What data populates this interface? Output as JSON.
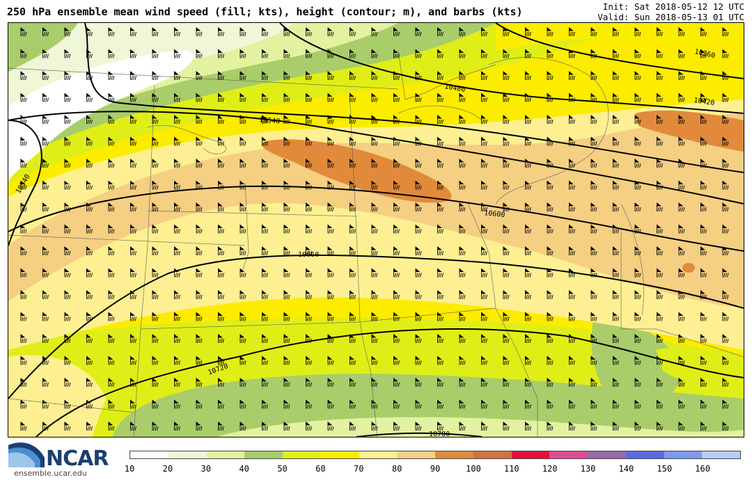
{
  "title": "250 hPa ensemble mean wind speed (fill; kts), height (contour; m), and barbs (kts)",
  "init_label": "Init: Sat 2018-05-12 12 UTC",
  "valid_label": "Valid: Sun 2018-05-13 01 UTC",
  "logo": {
    "name": "NCAR",
    "url": "ensemble.ucar.edu",
    "icon": "ncar-logo-icon"
  },
  "colorbar": {
    "ticks": [
      "10",
      "20",
      "30",
      "40",
      "50",
      "60",
      "70",
      "80",
      "90",
      "100",
      "110",
      "120",
      "130",
      "140",
      "150",
      "160"
    ],
    "colors": [
      "#ffffff",
      "#f0f7d6",
      "#e2f2a0",
      "#a9cd6a",
      "#e0ee17",
      "#fcec00",
      "#fef092",
      "#f5cf82",
      "#e18a3b",
      "#d3743b",
      "#e70e3c",
      "#e04d97",
      "#956ba6",
      "#5a6be3",
      "#7d9af0",
      "#b7cdf5"
    ]
  },
  "contour_labels": [
    "10360",
    "10420",
    "10480",
    "10540",
    "10540",
    "10600",
    "10660",
    "10720",
    "10780"
  ],
  "map_colors": {
    "c20": "#f0f7d6",
    "c30": "#e2f2a0",
    "c40": "#a9cd6a",
    "c50": "#e0ee17",
    "c60": "#fcec00",
    "c70": "#fef092",
    "c80": "#f5cf82",
    "c90": "#e18a3b"
  }
}
